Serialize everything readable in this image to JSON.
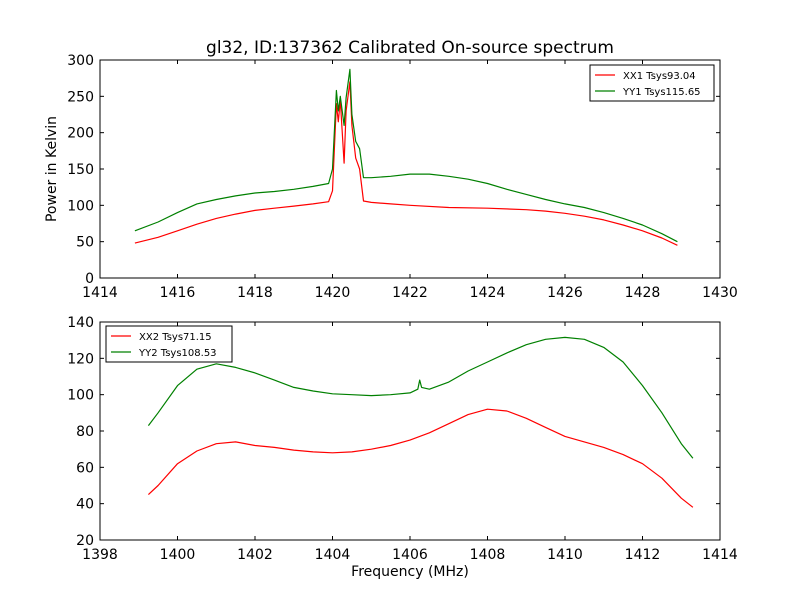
{
  "chart_data": [
    {
      "type": "line",
      "title": "gl32, ID:137362 Calibrated On-source spectrum",
      "xlabel": "",
      "ylabel": "Power in Kelvin",
      "xlim": [
        1414,
        1430
      ],
      "ylim": [
        0,
        300
      ],
      "xticks": [
        1414,
        1416,
        1418,
        1420,
        1422,
        1424,
        1426,
        1428,
        1430
      ],
      "yticks": [
        0,
        50,
        100,
        150,
        200,
        250,
        300
      ],
      "grid": false,
      "legend_position": "top-right",
      "series": [
        {
          "name": "XX1 Tsys93.04",
          "color": "#ff0000",
          "points": [
            [
              1414.9,
              48
            ],
            [
              1415.5,
              56
            ],
            [
              1416,
              65
            ],
            [
              1416.5,
              74
            ],
            [
              1417,
              82
            ],
            [
              1417.5,
              88
            ],
            [
              1418,
              93
            ],
            [
              1418.5,
              96
            ],
            [
              1419,
              99
            ],
            [
              1419.5,
              102
            ],
            [
              1419.9,
              105
            ],
            [
              1420.0,
              120
            ],
            [
              1420.1,
              240
            ],
            [
              1420.15,
              215
            ],
            [
              1420.2,
              245
            ],
            [
              1420.3,
              158
            ],
            [
              1420.35,
              230
            ],
            [
              1420.45,
              270
            ],
            [
              1420.5,
              210
            ],
            [
              1420.6,
              165
            ],
            [
              1420.7,
              150
            ],
            [
              1420.8,
              106
            ],
            [
              1421,
              104
            ],
            [
              1421.5,
              102
            ],
            [
              1422,
              100
            ],
            [
              1423,
              97
            ],
            [
              1424,
              96
            ],
            [
              1425,
              94
            ],
            [
              1425.5,
              92
            ],
            [
              1426,
              89
            ],
            [
              1426.5,
              85
            ],
            [
              1427,
              80
            ],
            [
              1427.5,
              73
            ],
            [
              1428,
              65
            ],
            [
              1428.5,
              55
            ],
            [
              1428.9,
              45
            ]
          ]
        },
        {
          "name": "YY1 Tsys115.65",
          "color": "#008000",
          "points": [
            [
              1414.9,
              65
            ],
            [
              1415.5,
              77
            ],
            [
              1416,
              90
            ],
            [
              1416.5,
              102
            ],
            [
              1417,
              108
            ],
            [
              1417.5,
              113
            ],
            [
              1418,
              117
            ],
            [
              1418.5,
              119
            ],
            [
              1419,
              122
            ],
            [
              1419.5,
              126
            ],
            [
              1419.9,
              130
            ],
            [
              1420.0,
              150
            ],
            [
              1420.1,
              258
            ],
            [
              1420.15,
              230
            ],
            [
              1420.2,
              250
            ],
            [
              1420.3,
              210
            ],
            [
              1420.35,
              248
            ],
            [
              1420.45,
              287
            ],
            [
              1420.5,
              225
            ],
            [
              1420.6,
              188
            ],
            [
              1420.7,
              178
            ],
            [
              1420.8,
              138
            ],
            [
              1421,
              138
            ],
            [
              1421.5,
              140
            ],
            [
              1422,
              143
            ],
            [
              1422.5,
              143
            ],
            [
              1423,
              140
            ],
            [
              1423.5,
              136
            ],
            [
              1424,
              130
            ],
            [
              1424.5,
              122
            ],
            [
              1425,
              115
            ],
            [
              1425.5,
              108
            ],
            [
              1426,
              102
            ],
            [
              1426.5,
              97
            ],
            [
              1427,
              90
            ],
            [
              1427.5,
              82
            ],
            [
              1428,
              73
            ],
            [
              1428.5,
              61
            ],
            [
              1428.9,
              50
            ]
          ]
        }
      ]
    },
    {
      "type": "line",
      "title": "",
      "xlabel": "Frequency (MHz)",
      "ylabel": "",
      "xlim": [
        1398,
        1414
      ],
      "ylim": [
        20,
        140
      ],
      "xticks": [
        1398,
        1400,
        1402,
        1404,
        1406,
        1408,
        1410,
        1412,
        1414
      ],
      "yticks": [
        20,
        40,
        60,
        80,
        100,
        120,
        140
      ],
      "grid": false,
      "legend_position": "top-left",
      "series": [
        {
          "name": "XX2 Tsys71.15",
          "color": "#ff0000",
          "points": [
            [
              1399.25,
              45
            ],
            [
              1399.5,
              50
            ],
            [
              1400,
              62
            ],
            [
              1400.5,
              69
            ],
            [
              1401,
              73
            ],
            [
              1401.5,
              74
            ],
            [
              1402,
              72
            ],
            [
              1402.5,
              71
            ],
            [
              1403,
              69.5
            ],
            [
              1403.5,
              68.5
            ],
            [
              1404,
              68
            ],
            [
              1404.5,
              68.5
            ],
            [
              1405,
              70
            ],
            [
              1405.5,
              72
            ],
            [
              1406,
              75
            ],
            [
              1406.5,
              79
            ],
            [
              1407,
              84
            ],
            [
              1407.5,
              89
            ],
            [
              1408,
              92
            ],
            [
              1408.5,
              91
            ],
            [
              1409,
              87
            ],
            [
              1409.5,
              82
            ],
            [
              1410,
              77
            ],
            [
              1410.5,
              74
            ],
            [
              1411,
              71
            ],
            [
              1411.5,
              67
            ],
            [
              1412,
              62
            ],
            [
              1412.5,
              54
            ],
            [
              1413,
              43
            ],
            [
              1413.3,
              38
            ]
          ]
        },
        {
          "name": "YY2 Tsys108.53",
          "color": "#008000",
          "points": [
            [
              1399.25,
              83
            ],
            [
              1399.5,
              90
            ],
            [
              1400,
              105
            ],
            [
              1400.5,
              114
            ],
            [
              1401,
              117
            ],
            [
              1401.5,
              115
            ],
            [
              1402,
              112
            ],
            [
              1402.5,
              108
            ],
            [
              1403,
              104
            ],
            [
              1403.5,
              102
            ],
            [
              1404,
              100.5
            ],
            [
              1404.5,
              100
            ],
            [
              1405,
              99.5
            ],
            [
              1405.5,
              100
            ],
            [
              1406,
              101
            ],
            [
              1406.2,
              103
            ],
            [
              1406.25,
              108
            ],
            [
              1406.3,
              104
            ],
            [
              1406.5,
              103
            ],
            [
              1407,
              107
            ],
            [
              1407.5,
              113
            ],
            [
              1408,
              118
            ],
            [
              1408.5,
              123
            ],
            [
              1409,
              127.5
            ],
            [
              1409.5,
              130.5
            ],
            [
              1410,
              131.5
            ],
            [
              1410.5,
              130.5
            ],
            [
              1411,
              126
            ],
            [
              1411.5,
              118
            ],
            [
              1412,
              105
            ],
            [
              1412.5,
              90
            ],
            [
              1413,
              73
            ],
            [
              1413.3,
              65
            ]
          ]
        }
      ]
    }
  ]
}
